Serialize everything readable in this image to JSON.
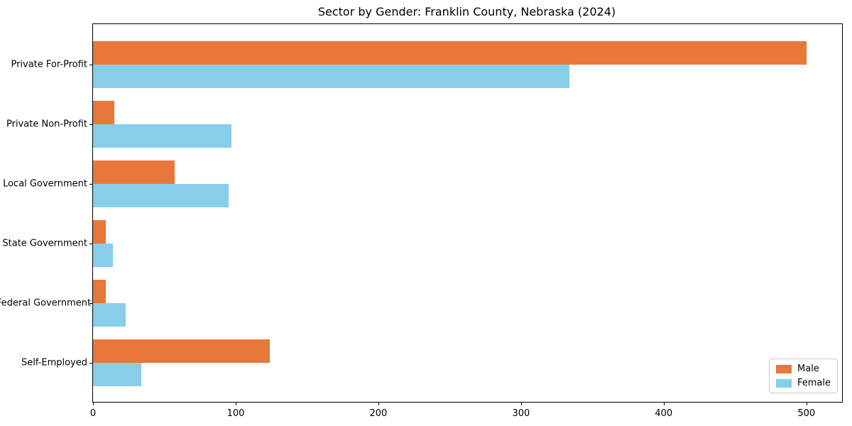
{
  "chart_data": {
    "type": "bar",
    "orientation": "horizontal",
    "title": "Sector by Gender: Franklin County, Nebraska (2024)",
    "xlabel": "",
    "ylabel": "",
    "categories": [
      "Private For-Profit",
      "Private Non-Profit",
      "Local Government",
      "State Government",
      "Federal Government",
      "Self-Employed"
    ],
    "series": [
      {
        "name": "Male",
        "color": "#e8783a",
        "values": [
          500,
          15,
          57,
          9,
          9,
          124
        ]
      },
      {
        "name": "Female",
        "color": "#87ceeb",
        "values": [
          334,
          97,
          95,
          14,
          23,
          34
        ]
      }
    ],
    "xlim": [
      0,
      525
    ],
    "x_ticks": [
      0,
      100,
      200,
      300,
      400,
      500
    ],
    "x_tick_labels": [
      "0",
      "100",
      "200",
      "300",
      "400",
      "500"
    ],
    "grid": false,
    "legend_position": "lower right",
    "frame": "full-box"
  }
}
